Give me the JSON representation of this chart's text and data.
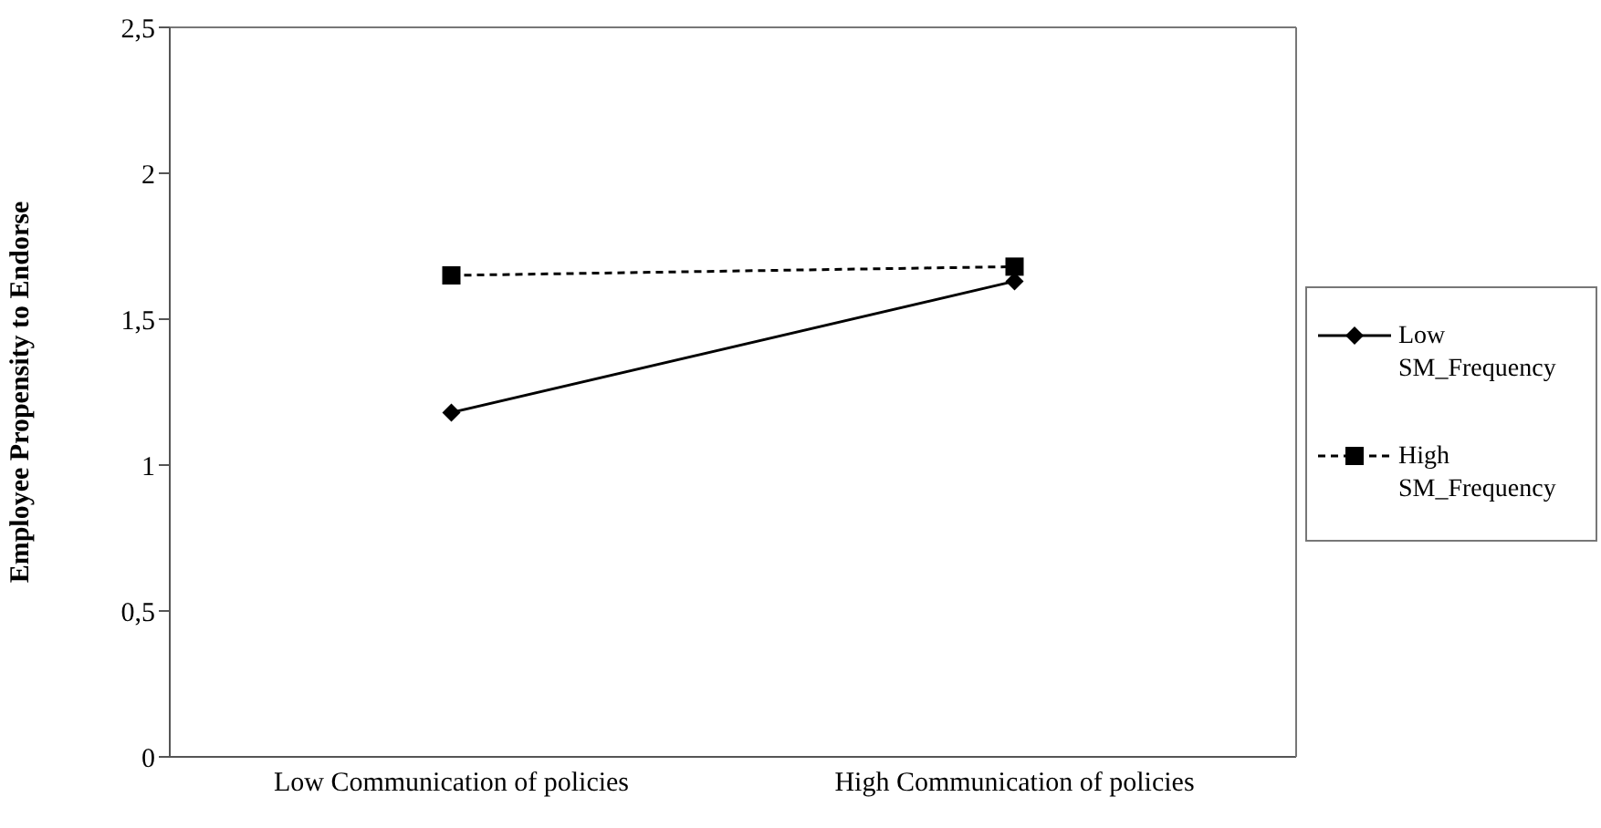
{
  "chart_data": {
    "type": "line",
    "ylabel": "Employee Propensity to Endorse",
    "categories": [
      "Low Communication of policies",
      "High Communication of policies"
    ],
    "series": [
      {
        "name": "Low SM_Frequency",
        "color": "#000000",
        "values": [
          1.18,
          1.63
        ],
        "marker": "diamond",
        "line_style": "solid"
      },
      {
        "name": "High SM_Frequency",
        "color": "#000000",
        "values": [
          1.65,
          1.68
        ],
        "marker": "square",
        "line_style": "dashed"
      }
    ],
    "ylim": [
      0,
      2.5
    ],
    "yticks": [
      0,
      {
        "value": 0.5,
        "label": "0,5"
      },
      1,
      {
        "value": 1.5,
        "label": "1,5"
      },
      2,
      {
        "value": 2.5,
        "label": "2,5"
      }
    ],
    "grid": false,
    "legend": "right"
  }
}
